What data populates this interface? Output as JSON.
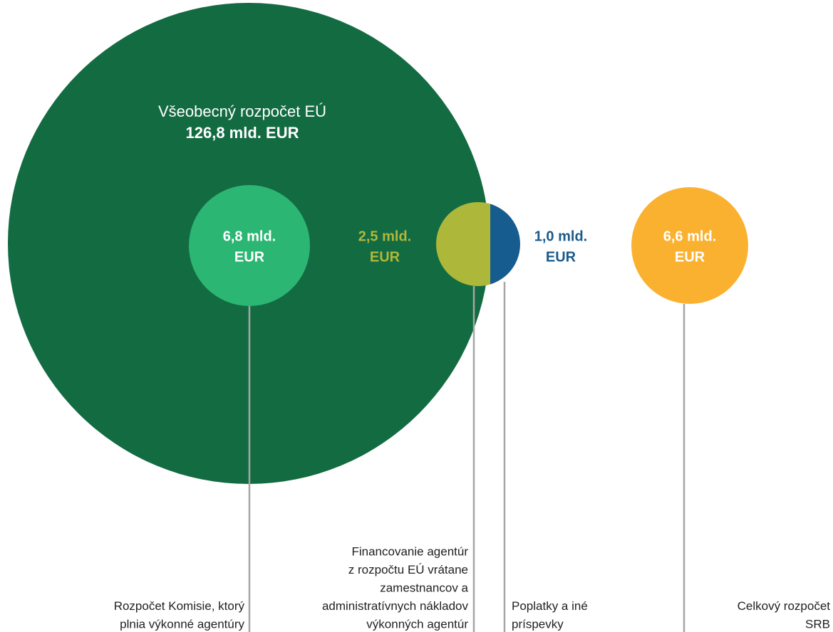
{
  "general_budget": {
    "label": "Všeobecný rozpočet EÚ",
    "amount": "126,8 mld. EUR"
  },
  "bubbles": [
    {
      "amount_lines": [
        "6,8 mld.",
        "EUR"
      ],
      "caption_lines": [
        "Rozpočet Komisie, ktorý",
        "plnia výkonné agentúry"
      ]
    },
    {
      "amount_lines": [
        "2,5 mld.",
        "EUR"
      ],
      "caption_lines": [
        "Financovanie agentúr",
        "z rozpočtu EÚ vrátane",
        "zamestnancov a",
        "administratívnych nákladov",
        "výkonných agentúr"
      ]
    },
    {
      "amount_lines": [
        "1,0 mld.",
        "EUR"
      ],
      "caption_lines": [
        "Poplatky a iné",
        "príspevky"
      ]
    },
    {
      "amount_lines": [
        "6,6 mld.",
        "EUR"
      ],
      "caption_lines": [
        "Celkový rozpočet",
        "SRB"
      ]
    }
  ]
}
